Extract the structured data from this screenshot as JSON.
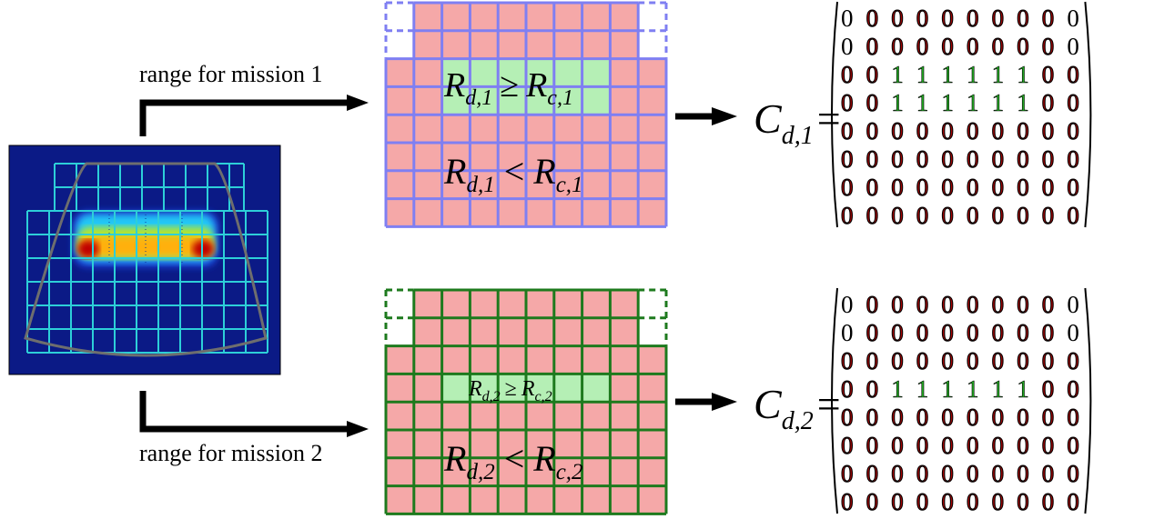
{
  "labels": {
    "mission1": "range for mission 1",
    "mission2": "range for mission 2"
  },
  "equations": {
    "m1_ge": {
      "lhs": "R",
      "lhs_sub": "d,1",
      "op": "≥",
      "rhs": "R",
      "rhs_sub": "c,1"
    },
    "m1_lt": {
      "lhs": "R",
      "lhs_sub": "d,1",
      "op": "<",
      "rhs": "R",
      "rhs_sub": "c,1"
    },
    "m2_ge": {
      "lhs": "R",
      "lhs_sub": "d,2",
      "op": "≥",
      "rhs": "R",
      "rhs_sub": "c,2"
    },
    "m2_lt": {
      "lhs": "R",
      "lhs_sub": "d,2",
      "op": "<",
      "rhs": "R",
      "rhs_sub": "c,2"
    },
    "C1": {
      "sym": "C",
      "sub": "d,1",
      "eq": "="
    },
    "C2": {
      "sym": "C",
      "sub": "d,2",
      "eq": "="
    }
  },
  "colors": {
    "one": "#22aa22",
    "zero_red": "#aa0000",
    "zero_black": "#000000",
    "cell_pink": "#f5a8a8",
    "cell_green": "#b5efb5",
    "grid1": "#7f7ff2",
    "grid2": "#1d7a1d",
    "heat_bg": "#0b1a86",
    "heat_grid": "#2dcfd8",
    "heat_outline": "#6e6e6e"
  },
  "grid": {
    "rows": 8,
    "cols": 10
  },
  "matrix1": [
    [
      "0",
      "0",
      "0",
      "0",
      "0",
      "0",
      "0",
      "0",
      "0",
      "0"
    ],
    [
      "0",
      "0",
      "0",
      "0",
      "0",
      "0",
      "0",
      "0",
      "0",
      "0"
    ],
    [
      "0",
      "0",
      "1",
      "1",
      "1",
      "1",
      "1",
      "1",
      "0",
      "0"
    ],
    [
      "0",
      "0",
      "1",
      "1",
      "1",
      "1",
      "1",
      "1",
      "0",
      "0"
    ],
    [
      "0",
      "0",
      "0",
      "0",
      "0",
      "0",
      "0",
      "0",
      "0",
      "0"
    ],
    [
      "0",
      "0",
      "0",
      "0",
      "0",
      "0",
      "0",
      "0",
      "0",
      "0"
    ],
    [
      "0",
      "0",
      "0",
      "0",
      "0",
      "0",
      "0",
      "0",
      "0",
      "0"
    ],
    [
      "0",
      "0",
      "0",
      "0",
      "0",
      "0",
      "0",
      "0",
      "0",
      "0"
    ]
  ],
  "matrix2": [
    [
      "0",
      "0",
      "0",
      "0",
      "0",
      "0",
      "0",
      "0",
      "0",
      "0"
    ],
    [
      "0",
      "0",
      "0",
      "0",
      "0",
      "0",
      "0",
      "0",
      "0",
      "0"
    ],
    [
      "0",
      "0",
      "0",
      "0",
      "0",
      "0",
      "0",
      "0",
      "0",
      "0"
    ],
    [
      "0",
      "0",
      "1",
      "1",
      "1",
      "1",
      "1",
      "1",
      "0",
      "0"
    ],
    [
      "0",
      "0",
      "0",
      "0",
      "0",
      "0",
      "0",
      "0",
      "0",
      "0"
    ],
    [
      "0",
      "0",
      "0",
      "0",
      "0",
      "0",
      "0",
      "0",
      "0",
      "0"
    ],
    [
      "0",
      "0",
      "0",
      "0",
      "0",
      "0",
      "0",
      "0",
      "0",
      "0"
    ],
    [
      "0",
      "0",
      "0",
      "0",
      "0",
      "0",
      "0",
      "0",
      "0",
      "0"
    ]
  ]
}
